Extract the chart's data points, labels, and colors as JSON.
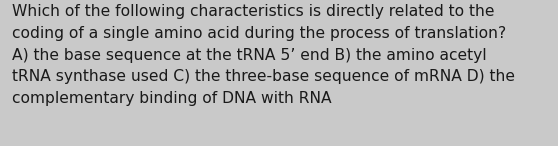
{
  "lines": [
    "Which of the following characteristics is directly related to the",
    "coding of a single amino acid during the process of translation?",
    "A) the base sequence at the tRNA 5’ end B) the amino acetyl",
    "tRNA synthase used C) the three-base sequence of mRNA D) the",
    "complementary binding of DNA with RNA"
  ],
  "background_color": "#c9c9c9",
  "text_color": "#1a1a1a",
  "font_size": 11.2,
  "fig_width": 5.58,
  "fig_height": 1.46,
  "linespacing": 1.55
}
